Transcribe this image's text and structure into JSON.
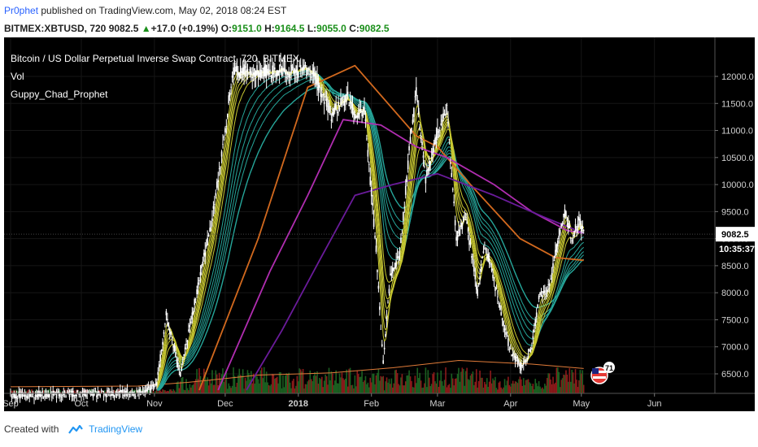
{
  "header": {
    "author": "Pr0phet",
    "published": " published on TradingView.com, May 02, 2018 08:24 EST",
    "symbol": "BITMEX:XBTUSD, 720",
    "last": "9082.5",
    "change": "+17.0 (+0.19%)",
    "o_label": "O:",
    "o": "9151.0",
    "h_label": "H:",
    "h": "9164.5",
    "l_label": "L:",
    "l": "9055.0",
    "c_label": "C:",
    "c": "9082.5"
  },
  "legend": {
    "main": "Bitcoin / US Dollar Perpetual Inverse Swap Contract, 720, BITMEX",
    "vol": "Vol",
    "indicator": "Guppy_Chad_Prophet"
  },
  "footer": {
    "created_with": "Created with",
    "brand": "TradingView"
  },
  "badges": {
    "flag_count": "71",
    "price_badge": "9082.5",
    "time_badge": "10:35:37"
  },
  "colors": {
    "background": "#000000",
    "candle": "#ffffff",
    "fast_ema": "#c8c832",
    "slow_ema": "#26a69a",
    "ema_orange": "#d2691e",
    "ema_magenta": "#b02db0",
    "ema_purple": "#6a1b9a",
    "vol_up": "#1b5e20",
    "vol_down": "#8b1a1a",
    "vol_ma": "#e07b39"
  },
  "chart_data": {
    "type": "candlestick",
    "y_ticks": [
      "12000.0",
      "11500.0",
      "11000.0",
      "10500.0",
      "10000.0",
      "9500.0",
      "9000.0",
      "8500.0",
      "8000.0",
      "7500.0",
      "7000.0",
      "6500.0"
    ],
    "x_ticks": [
      "Sep",
      "Oct",
      "Nov",
      "Dec",
      "2018",
      "Feb",
      "Mar",
      "Apr",
      "May",
      "Jun"
    ],
    "ylim": [
      6200,
      12200
    ],
    "price_path": [
      {
        "x": "2017-09-01",
        "y": 6100
      },
      {
        "x": "2017-10-25",
        "y": 6150
      },
      {
        "x": "2017-11-02",
        "y": 6300
      },
      {
        "x": "2017-11-06",
        "y": 7600
      },
      {
        "x": "2017-11-12",
        "y": 6500
      },
      {
        "x": "2017-11-18",
        "y": 7800
      },
      {
        "x": "2017-11-26",
        "y": 9500
      },
      {
        "x": "2017-12-01",
        "y": 11000
      },
      {
        "x": "2017-12-04",
        "y": 12100
      },
      {
        "x": "2018-01-07",
        "y": 12100
      },
      {
        "x": "2018-01-10",
        "y": 11800
      },
      {
        "x": "2018-01-15",
        "y": 11300
      },
      {
        "x": "2018-01-22",
        "y": 11600
      },
      {
        "x": "2018-01-26",
        "y": 11200
      },
      {
        "x": "2018-01-29",
        "y": 11400
      },
      {
        "x": "2018-02-03",
        "y": 8800
      },
      {
        "x": "2018-02-06",
        "y": 6700
      },
      {
        "x": "2018-02-09",
        "y": 8300
      },
      {
        "x": "2018-02-13",
        "y": 8700
      },
      {
        "x": "2018-02-17",
        "y": 10600
      },
      {
        "x": "2018-02-20",
        "y": 11700
      },
      {
        "x": "2018-02-24",
        "y": 10100
      },
      {
        "x": "2018-02-28",
        "y": 10800
      },
      {
        "x": "2018-03-05",
        "y": 11400
      },
      {
        "x": "2018-03-09",
        "y": 9000
      },
      {
        "x": "2018-03-13",
        "y": 9400
      },
      {
        "x": "2018-03-18",
        "y": 8000
      },
      {
        "x": "2018-03-21",
        "y": 8900
      },
      {
        "x": "2018-03-26",
        "y": 8000
      },
      {
        "x": "2018-04-01",
        "y": 6900
      },
      {
        "x": "2018-04-06",
        "y": 6600
      },
      {
        "x": "2018-04-10",
        "y": 7000
      },
      {
        "x": "2018-04-13",
        "y": 7900
      },
      {
        "x": "2018-04-17",
        "y": 8100
      },
      {
        "x": "2018-04-21",
        "y": 8900
      },
      {
        "x": "2018-04-24",
        "y": 9500
      },
      {
        "x": "2018-04-27",
        "y": 9000
      },
      {
        "x": "2018-04-30",
        "y": 9350
      },
      {
        "x": "2018-05-02",
        "y": 9082.5
      }
    ],
    "volume_ma_path": [
      {
        "x": "2017-09-01",
        "y": 0.09
      },
      {
        "x": "2017-10-25",
        "y": 0.1
      },
      {
        "x": "2017-11-15",
        "y": 0.15
      },
      {
        "x": "2017-12-15",
        "y": 0.25
      },
      {
        "x": "2018-01-15",
        "y": 0.28
      },
      {
        "x": "2018-02-10",
        "y": 0.35
      },
      {
        "x": "2018-03-10",
        "y": 0.45
      },
      {
        "x": "2018-04-10",
        "y": 0.4
      },
      {
        "x": "2018-05-02",
        "y": 0.34
      }
    ],
    "series": [
      {
        "role": "fast",
        "shift": [
          0,
          50,
          100,
          140,
          190,
          240
        ],
        "smooth": 2
      },
      {
        "role": "slow",
        "shift": [
          300,
          380,
          460,
          540,
          620,
          700
        ],
        "smooth": 5
      },
      {
        "role": "orange",
        "path": [
          {
            "x": "2017-11-20",
            "y": 6200
          },
          {
            "x": "2017-12-15",
            "y": 9000
          },
          {
            "x": "2018-01-05",
            "y": 11800
          },
          {
            "x": "2018-01-25",
            "y": 12200
          },
          {
            "x": "2018-02-20",
            "y": 10900
          },
          {
            "x": "2018-03-01",
            "y": 10700
          },
          {
            "x": "2018-03-15",
            "y": 10000
          },
          {
            "x": "2018-04-05",
            "y": 9000
          },
          {
            "x": "2018-04-20",
            "y": 8650
          },
          {
            "x": "2018-05-02",
            "y": 8600
          }
        ]
      },
      {
        "role": "magenta",
        "path": [
          {
            "x": "2017-11-28",
            "y": 6200
          },
          {
            "x": "2017-12-20",
            "y": 8400
          },
          {
            "x": "2018-01-05",
            "y": 9800
          },
          {
            "x": "2018-01-20",
            "y": 11200
          },
          {
            "x": "2018-02-05",
            "y": 11100
          },
          {
            "x": "2018-02-20",
            "y": 10700
          },
          {
            "x": "2018-03-05",
            "y": 10500
          },
          {
            "x": "2018-03-25",
            "y": 10000
          },
          {
            "x": "2018-04-10",
            "y": 9500
          },
          {
            "x": "2018-04-25",
            "y": 9150
          },
          {
            "x": "2018-05-02",
            "y": 9100
          }
        ]
      },
      {
        "role": "purple",
        "path": [
          {
            "x": "2017-12-10",
            "y": 6200
          },
          {
            "x": "2017-12-25",
            "y": 7300
          },
          {
            "x": "2018-01-10",
            "y": 8600
          },
          {
            "x": "2018-01-25",
            "y": 9800
          },
          {
            "x": "2018-02-10",
            "y": 10000
          },
          {
            "x": "2018-03-01",
            "y": 10200
          },
          {
            "x": "2018-03-25",
            "y": 9800
          },
          {
            "x": "2018-04-15",
            "y": 9400
          },
          {
            "x": "2018-05-02",
            "y": 9100
          }
        ]
      }
    ]
  }
}
